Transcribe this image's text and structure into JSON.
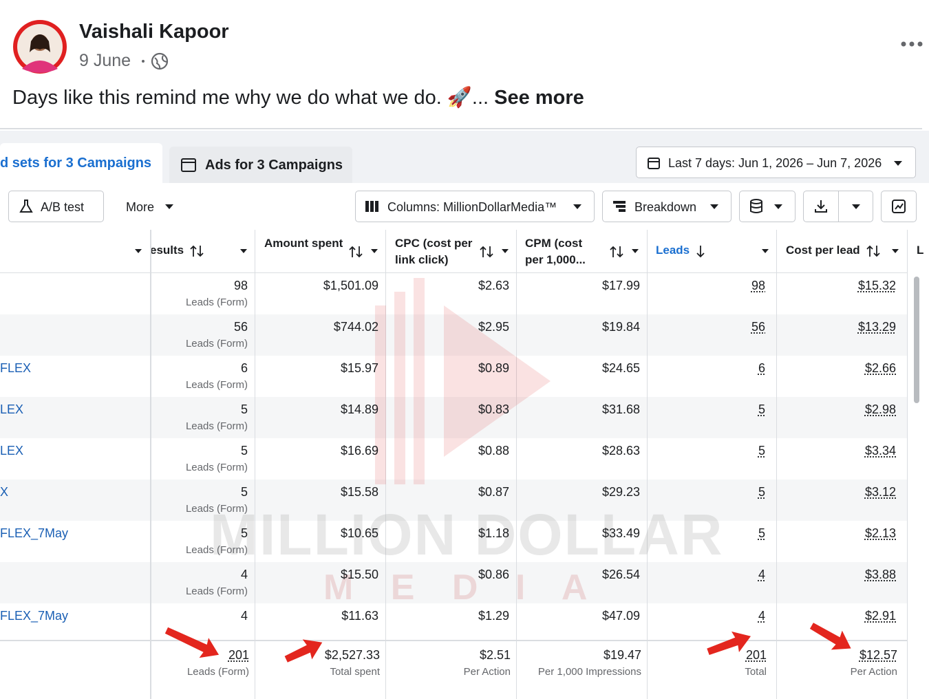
{
  "post": {
    "author": "Vaishali Kapoor",
    "date": "9 June",
    "text": "Days like this remind me why we do what we do. 🚀...",
    "see_more": "See more"
  },
  "tabs": [
    "d sets for 3 Campaigns",
    "Ads for 3 Campaigns"
  ],
  "date_range": "Last 7 days: Jun 1, 2026 – Jun 7, 2026",
  "toolbar": {
    "ab_test": "A/B test",
    "more": "More",
    "columns": "Columns: MillionDollarMedia™",
    "breakdown": "Breakdown"
  },
  "table": {
    "headers": [
      "esults",
      "Amount spent",
      "CPC (cost per link click)",
      "CPM (cost per 1,000...",
      "Leads",
      "Cost per lead",
      "L"
    ],
    "rows": [
      {
        "results": "98",
        "result_type": "Leads (Form)",
        "amount_spent": "$1,501.09",
        "cpc": "$2.63",
        "cpm": "$17.99",
        "leads": "98",
        "cost_per_lead": "$15.32"
      },
      {
        "results": "56",
        "result_type": "Leads (Form)",
        "amount_spent": "$744.02",
        "cpc": "$2.95",
        "cpm": "$19.84",
        "leads": "56",
        "cost_per_lead": "$13.29"
      },
      {
        "name": "FLEX",
        "results": "6",
        "result_type": "Leads (Form)",
        "amount_spent": "$15.97",
        "cpc": "$0.89",
        "cpm": "$24.65",
        "leads": "6",
        "cost_per_lead": "$2.66"
      },
      {
        "name": "LEX",
        "results": "5",
        "result_type": "Leads (Form)",
        "amount_spent": "$14.89",
        "cpc": "$0.83",
        "cpm": "$31.68",
        "leads": "5",
        "cost_per_lead": "$2.98"
      },
      {
        "name": "LEX",
        "results": "5",
        "result_type": "Leads (Form)",
        "amount_spent": "$16.69",
        "cpc": "$0.88",
        "cpm": "$28.63",
        "leads": "5",
        "cost_per_lead": "$3.34"
      },
      {
        "name": "X",
        "results": "5",
        "result_type": "Leads (Form)",
        "amount_spent": "$15.58",
        "cpc": "$0.87",
        "cpm": "$29.23",
        "leads": "5",
        "cost_per_lead": "$3.12"
      },
      {
        "name": "FLEX_7May",
        "results": "5",
        "result_type": "Leads (Form)",
        "amount_spent": "$10.65",
        "cpc": "$1.18",
        "cpm": "$33.49",
        "leads": "5",
        "cost_per_lead": "$2.13"
      },
      {
        "results": "4",
        "result_type": "Leads (Form)",
        "amount_spent": "$15.50",
        "cpc": "$0.86",
        "cpm": "$26.54",
        "leads": "4",
        "cost_per_lead": "$3.88"
      },
      {
        "name": "FLEX_7May",
        "results": "4",
        "amount_spent": "$11.63",
        "cpc": "$1.29",
        "cpm": "$47.09",
        "leads": "4",
        "cost_per_lead": "$2.91"
      }
    ],
    "totals": {
      "results": "201",
      "results_sub": "Leads (Form)",
      "amount_spent": "$2,527.33",
      "amount_spent_sub": "Total spent",
      "cpc": "$2.51",
      "cpc_sub": "Per Action",
      "cpm": "$19.47",
      "cpm_sub": "Per 1,000 Impressions",
      "leads": "201",
      "leads_sub": "Total",
      "cost_per_lead": "$12.57",
      "cost_per_lead_sub": "Per Action"
    }
  },
  "watermark": {
    "line1": "MILLION DOLLAR",
    "line2": "M E D I A"
  }
}
